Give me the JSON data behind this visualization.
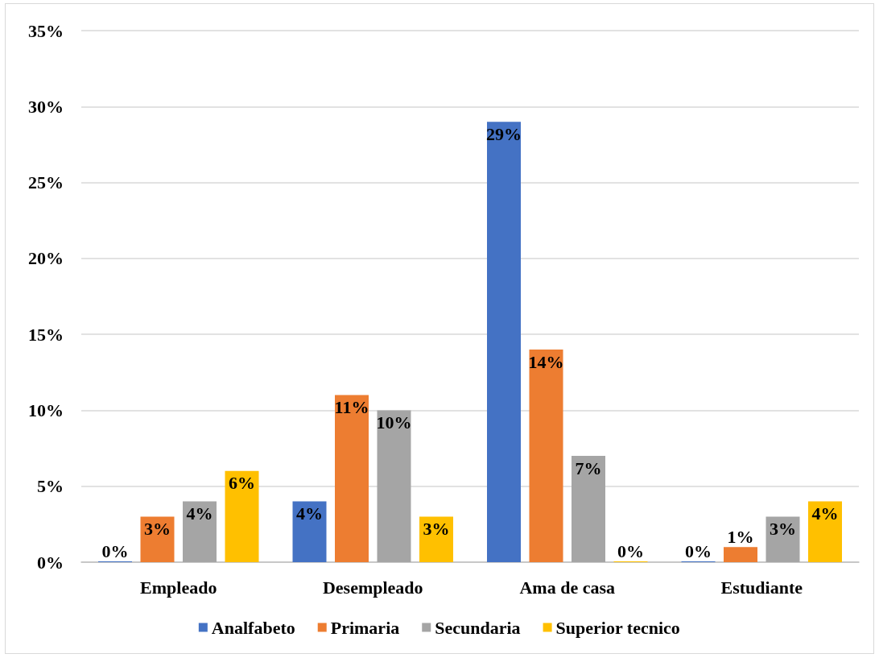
{
  "chart_data": {
    "type": "bar",
    "categories": [
      "Empleado",
      "Desempleado",
      "Ama de casa",
      "Estudiante"
    ],
    "series": [
      {
        "name": "Analfabeto",
        "color": "#4472c4",
        "values": [
          0,
          4,
          29,
          0
        ],
        "value_labels": [
          "0%",
          "4%",
          "29%",
          "0%"
        ]
      },
      {
        "name": "Primaria",
        "color": "#ed7d31",
        "values": [
          3,
          11,
          14,
          1
        ],
        "value_labels": [
          "3%",
          "11%",
          "14%",
          "1%"
        ]
      },
      {
        "name": "Secundaria",
        "color": "#a5a5a5",
        "values": [
          4,
          10,
          7,
          3
        ],
        "value_labels": [
          "4%",
          "10%",
          "7%",
          "3%"
        ]
      },
      {
        "name": "Superior tecnico",
        "color": "#ffc000",
        "values": [
          6,
          3,
          0,
          4
        ],
        "value_labels": [
          "6%",
          "3%",
          "0%",
          "4%"
        ]
      }
    ],
    "ylim": [
      0,
      35
    ],
    "yticks": [
      {
        "value": 0,
        "label": "0%"
      },
      {
        "value": 5,
        "label": "5%"
      },
      {
        "value": 10,
        "label": "10%"
      },
      {
        "value": 15,
        "label": "15%"
      },
      {
        "value": 20,
        "label": "20%"
      },
      {
        "value": 25,
        "label": "25%"
      },
      {
        "value": 30,
        "label": "30%"
      },
      {
        "value": 35,
        "label": "35%"
      }
    ],
    "grid": "y",
    "legend": "bottom"
  }
}
